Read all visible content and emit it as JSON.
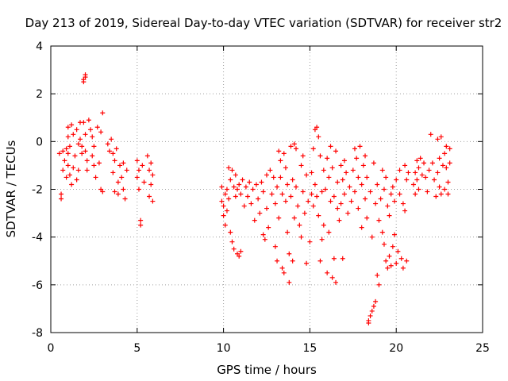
{
  "chart_data": {
    "type": "scatter",
    "title": "Day 213 of 2019, Sidereal Day-to-day VTEC variation (SDTVAR) for receiver str2",
    "xlabel": "GPS time / hours",
    "ylabel": "SDTVAR / TECUs",
    "xlim": [
      0,
      25
    ],
    "ylim": [
      -8,
      4
    ],
    "xticks": [
      0,
      5,
      10,
      15,
      20,
      25
    ],
    "yticks": [
      -8,
      -6,
      -4,
      -2,
      0,
      2,
      4
    ],
    "grid": true,
    "marker": "+",
    "series": [
      {
        "name": "SDTVAR",
        "color": "#ff0000",
        "points": [
          [
            0.5,
            -0.5
          ],
          [
            0.6,
            -2.2
          ],
          [
            0.6,
            -2.4
          ],
          [
            0.7,
            -0.4
          ],
          [
            0.7,
            -1.2
          ],
          [
            0.8,
            -0.8
          ],
          [
            0.9,
            -0.3
          ],
          [
            0.9,
            -1.5
          ],
          [
            1.0,
            0.6
          ],
          [
            1.0,
            0.2
          ],
          [
            1.0,
            -0.5
          ],
          [
            1.0,
            -1.0
          ],
          [
            1.1,
            -0.2
          ],
          [
            1.1,
            -1.4
          ],
          [
            1.2,
            0.7
          ],
          [
            1.2,
            -1.8
          ],
          [
            1.3,
            0.3
          ],
          [
            1.3,
            -1.1
          ],
          [
            1.4,
            -0.6
          ],
          [
            1.5,
            0.5
          ],
          [
            1.5,
            -1.6
          ],
          [
            1.6,
            -0.1
          ],
          [
            1.6,
            -1.2
          ],
          [
            1.7,
            0.8
          ],
          [
            1.7,
            0.1
          ],
          [
            1.8,
            -0.5
          ],
          [
            1.8,
            -0.2
          ],
          [
            1.9,
            2.5
          ],
          [
            1.9,
            2.6
          ],
          [
            2.0,
            2.7
          ],
          [
            2.0,
            2.8
          ],
          [
            1.9,
            0.8
          ],
          [
            2.0,
            0.3
          ],
          [
            2.0,
            -0.4
          ],
          [
            2.1,
            -0.8
          ],
          [
            2.1,
            -1.2
          ],
          [
            2.2,
            0.9
          ],
          [
            2.3,
            0.5
          ],
          [
            2.4,
            0.2
          ],
          [
            2.4,
            -0.6
          ],
          [
            2.5,
            -0.2
          ],
          [
            2.5,
            -1.0
          ],
          [
            2.6,
            -1.5
          ],
          [
            2.7,
            0.6
          ],
          [
            2.8,
            -0.9
          ],
          [
            2.9,
            0.4
          ],
          [
            3.0,
            1.2
          ],
          [
            2.9,
            -2.0
          ],
          [
            3.0,
            -2.1
          ],
          [
            3.3,
            -0.1
          ],
          [
            3.4,
            -0.4
          ],
          [
            3.5,
            0.1
          ],
          [
            3.6,
            -0.5
          ],
          [
            3.6,
            -1.3
          ],
          [
            3.7,
            -0.8
          ],
          [
            3.7,
            -2.1
          ],
          [
            3.8,
            -0.3
          ],
          [
            3.9,
            -1.7
          ],
          [
            3.9,
            -2.2
          ],
          [
            4.0,
            -1.0
          ],
          [
            4.1,
            -1.5
          ],
          [
            4.2,
            -2.0
          ],
          [
            4.2,
            -0.9
          ],
          [
            4.3,
            -2.4
          ],
          [
            4.4,
            -1.2
          ],
          [
            5.0,
            -0.8
          ],
          [
            5.0,
            -1.5
          ],
          [
            5.1,
            -1.2
          ],
          [
            5.1,
            -2.0
          ],
          [
            5.2,
            -3.3
          ],
          [
            5.2,
            -3.5
          ],
          [
            5.3,
            -1.0
          ],
          [
            5.4,
            -1.7
          ],
          [
            5.6,
            -0.6
          ],
          [
            5.7,
            -1.2
          ],
          [
            5.7,
            -2.3
          ],
          [
            5.8,
            -0.9
          ],
          [
            5.8,
            -1.8
          ],
          [
            5.9,
            -2.5
          ],
          [
            5.9,
            -1.4
          ],
          [
            9.9,
            -1.9
          ],
          [
            9.9,
            -2.5
          ],
          [
            10.0,
            -2.7
          ],
          [
            10.0,
            -3.1
          ],
          [
            10.1,
            -2.2
          ],
          [
            10.1,
            -3.5
          ],
          [
            10.2,
            -2.0
          ],
          [
            10.2,
            -2.9
          ],
          [
            10.3,
            -1.1
          ],
          [
            10.3,
            -2.4
          ],
          [
            10.4,
            -3.8
          ],
          [
            10.4,
            -1.6
          ],
          [
            10.5,
            -1.2
          ],
          [
            10.5,
            -4.2
          ],
          [
            10.6,
            -1.9
          ],
          [
            10.6,
            -4.5
          ],
          [
            10.7,
            -2.3
          ],
          [
            10.7,
            -1.4
          ],
          [
            10.8,
            -4.7
          ],
          [
            10.8,
            -2.0
          ],
          [
            10.9,
            -4.8
          ],
          [
            10.9,
            -1.8
          ],
          [
            11.0,
            -4.6
          ],
          [
            11.0,
            -2.2
          ],
          [
            11.1,
            -1.6
          ],
          [
            11.2,
            -2.7
          ],
          [
            11.3,
            -1.9
          ],
          [
            11.4,
            -2.3
          ],
          [
            11.5,
            -1.7
          ],
          [
            11.6,
            -2.6
          ],
          [
            11.7,
            -2.0
          ],
          [
            11.8,
            -3.3
          ],
          [
            11.9,
            -1.8
          ],
          [
            12.0,
            -2.4
          ],
          [
            12.1,
            -3.0
          ],
          [
            12.2,
            -1.7
          ],
          [
            12.3,
            -3.9
          ],
          [
            12.3,
            -2.1
          ],
          [
            12.4,
            -4.1
          ],
          [
            12.5,
            -1.4
          ],
          [
            12.5,
            -2.8
          ],
          [
            12.6,
            -3.6
          ],
          [
            12.7,
            -1.2
          ],
          [
            12.8,
            -2.2
          ],
          [
            12.9,
            -1.5
          ],
          [
            13.0,
            -4.4
          ],
          [
            13.0,
            -2.6
          ],
          [
            13.1,
            -5.0
          ],
          [
            13.1,
            -1.9
          ],
          [
            13.2,
            -0.4
          ],
          [
            13.2,
            -3.2
          ],
          [
            13.3,
            -0.8
          ],
          [
            13.3,
            -1.5
          ],
          [
            13.4,
            -5.3
          ],
          [
            13.4,
            -2.2
          ],
          [
            13.5,
            -0.5
          ],
          [
            13.5,
            -5.5
          ],
          [
            13.6,
            -1.1
          ],
          [
            13.6,
            -2.5
          ],
          [
            13.7,
            -3.8
          ],
          [
            13.7,
            -1.8
          ],
          [
            13.8,
            -5.9
          ],
          [
            13.8,
            -4.7
          ],
          [
            13.9,
            -0.2
          ],
          [
            13.9,
            -2.3
          ],
          [
            14.0,
            -5.0
          ],
          [
            14.0,
            -1.6
          ],
          [
            14.1,
            -3.2
          ],
          [
            14.1,
            -0.1
          ],
          [
            14.2,
            -1.9
          ],
          [
            14.2,
            -0.3
          ],
          [
            14.3,
            -2.7
          ],
          [
            14.4,
            -3.5
          ],
          [
            14.5,
            -4.0
          ],
          [
            14.5,
            -1.0
          ],
          [
            14.6,
            -2.1
          ],
          [
            14.6,
            -0.6
          ],
          [
            14.7,
            -3.0
          ],
          [
            14.8,
            -1.4
          ],
          [
            14.8,
            -5.1
          ],
          [
            14.9,
            -2.5
          ],
          [
            15.0,
            -4.2
          ],
          [
            15.1,
            -2.2
          ],
          [
            15.1,
            -1.3
          ],
          [
            15.2,
            -0.3
          ],
          [
            15.2,
            -2.7
          ],
          [
            15.3,
            0.5
          ],
          [
            15.3,
            -1.8
          ],
          [
            15.4,
            0.6
          ],
          [
            15.4,
            -2.3
          ],
          [
            15.5,
            0.2
          ],
          [
            15.5,
            -3.1
          ],
          [
            15.6,
            -0.6
          ],
          [
            15.6,
            -5.0
          ],
          [
            15.7,
            -2.1
          ],
          [
            15.7,
            -4.1
          ],
          [
            15.8,
            -1.2
          ],
          [
            15.8,
            -3.5
          ],
          [
            15.9,
            -2.0
          ],
          [
            16.0,
            -0.7
          ],
          [
            16.0,
            -5.5
          ],
          [
            16.1,
            -1.5
          ],
          [
            16.1,
            -3.8
          ],
          [
            16.2,
            -0.2
          ],
          [
            16.2,
            -2.5
          ],
          [
            16.3,
            -5.7
          ],
          [
            16.3,
            -1.1
          ],
          [
            16.4,
            -4.9
          ],
          [
            16.4,
            -2.3
          ],
          [
            16.5,
            -0.4
          ],
          [
            16.5,
            -5.9
          ],
          [
            16.6,
            -1.7
          ],
          [
            16.6,
            -2.8
          ],
          [
            16.7,
            -3.3
          ],
          [
            16.8,
            -1.0
          ],
          [
            16.8,
            -2.6
          ],
          [
            16.9,
            -4.9
          ],
          [
            16.9,
            -1.6
          ],
          [
            17.0,
            -0.8
          ],
          [
            17.0,
            -2.2
          ],
          [
            17.1,
            -1.3
          ],
          [
            17.2,
            -3.0
          ],
          [
            17.3,
            -1.9
          ],
          [
            17.4,
            -2.5
          ],
          [
            17.5,
            -1.2
          ],
          [
            17.6,
            -0.3
          ],
          [
            17.6,
            -2.1
          ],
          [
            17.7,
            -0.7
          ],
          [
            17.8,
            -1.5
          ],
          [
            17.8,
            -2.8
          ],
          [
            17.9,
            -0.2
          ],
          [
            18.0,
            -1.8
          ],
          [
            18.0,
            -3.6
          ],
          [
            18.1,
            -1.0
          ],
          [
            18.2,
            -2.4
          ],
          [
            18.2,
            -0.6
          ],
          [
            18.3,
            -3.2
          ],
          [
            18.3,
            -1.5
          ],
          [
            18.4,
            -7.5
          ],
          [
            18.4,
            -7.6
          ],
          [
            18.5,
            -7.3
          ],
          [
            18.5,
            -2.1
          ],
          [
            18.6,
            -7.1
          ],
          [
            18.6,
            -4.0
          ],
          [
            18.7,
            -6.9
          ],
          [
            18.7,
            -0.9
          ],
          [
            18.8,
            -6.7
          ],
          [
            18.8,
            -2.6
          ],
          [
            18.9,
            -5.6
          ],
          [
            18.9,
            -1.8
          ],
          [
            19.0,
            -6.0
          ],
          [
            19.0,
            -3.3
          ],
          [
            19.1,
            -2.4
          ],
          [
            19.2,
            -1.2
          ],
          [
            19.2,
            -3.8
          ],
          [
            19.3,
            -4.3
          ],
          [
            19.3,
            -2.0
          ],
          [
            19.4,
            -5.0
          ],
          [
            19.4,
            -1.5
          ],
          [
            19.5,
            -5.3
          ],
          [
            19.5,
            -2.7
          ],
          [
            19.6,
            -4.8
          ],
          [
            19.6,
            -3.1
          ],
          [
            19.7,
            -2.2
          ],
          [
            19.7,
            -5.2
          ],
          [
            19.8,
            -1.9
          ],
          [
            19.8,
            -4.4
          ],
          [
            19.9,
            -2.5
          ],
          [
            19.9,
            -3.9
          ],
          [
            20.0,
            -1.6
          ],
          [
            20.0,
            -5.1
          ],
          [
            20.1,
            -4.6
          ],
          [
            20.2,
            -2.2
          ],
          [
            20.2,
            -1.2
          ],
          [
            20.3,
            -4.9
          ],
          [
            20.4,
            -2.6
          ],
          [
            20.4,
            -5.3
          ],
          [
            20.5,
            -1.0
          ],
          [
            20.5,
            -2.9
          ],
          [
            20.6,
            -1.6
          ],
          [
            20.6,
            -5.0
          ],
          [
            20.7,
            -1.3
          ],
          [
            21.0,
            -1.8
          ],
          [
            21.1,
            -2.2
          ],
          [
            21.1,
            -1.3
          ],
          [
            21.2,
            -0.8
          ],
          [
            21.2,
            -1.6
          ],
          [
            21.3,
            -1.1
          ],
          [
            21.3,
            -2.0
          ],
          [
            21.4,
            -0.7
          ],
          [
            21.5,
            -1.4
          ],
          [
            21.6,
            -0.9
          ],
          [
            21.7,
            -1.5
          ],
          [
            21.8,
            -2.1
          ],
          [
            21.9,
            -1.2
          ],
          [
            22.0,
            0.3
          ],
          [
            22.1,
            -0.9
          ],
          [
            22.2,
            -1.6
          ],
          [
            22.3,
            -2.3
          ],
          [
            22.4,
            0.1
          ],
          [
            22.4,
            -1.3
          ],
          [
            22.5,
            -0.7
          ],
          [
            22.5,
            -1.9
          ],
          [
            22.6,
            0.2
          ],
          [
            22.6,
            -2.2
          ],
          [
            22.7,
            -1.0
          ],
          [
            22.8,
            -2.0
          ],
          [
            22.8,
            -0.5
          ],
          [
            22.9,
            -0.2
          ],
          [
            22.9,
            -1.1
          ],
          [
            23.0,
            -1.7
          ],
          [
            23.0,
            -2.2
          ],
          [
            23.1,
            -0.3
          ],
          [
            23.1,
            -0.9
          ]
        ]
      }
    ]
  }
}
